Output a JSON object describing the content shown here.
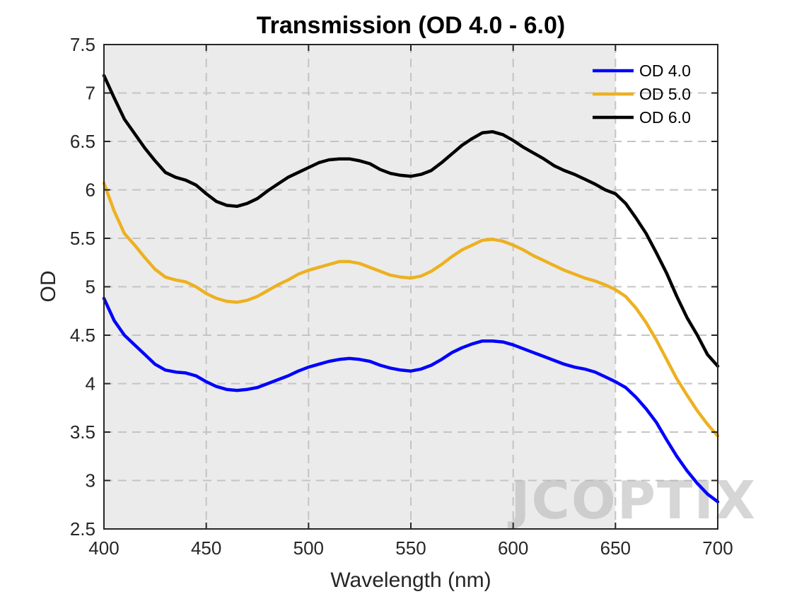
{
  "chart_data": {
    "type": "line",
    "title": "Transmission (OD 4.0 - 6.0)",
    "xlabel": "Wavelength (nm)",
    "ylabel": "OD",
    "xlim": [
      400,
      700
    ],
    "ylim": [
      2.5,
      7.5
    ],
    "x_ticks": [
      "400",
      "450",
      "500",
      "550",
      "600",
      "650",
      "700"
    ],
    "y_ticks": [
      "2.5",
      "3",
      "3.5",
      "4",
      "4.5",
      "5",
      "5.5",
      "6",
      "6.5",
      "7",
      "7.5"
    ],
    "grid": true,
    "legend_position": "top-right",
    "shaded_region": {
      "x": [
        400,
        650
      ],
      "color": "#ebebeb"
    },
    "watermark": "JCOPTIX",
    "series": [
      {
        "name": "OD 4.0",
        "color": "#0000ff",
        "points": [
          [
            400,
            4.88
          ],
          [
            405,
            4.65
          ],
          [
            410,
            4.5
          ],
          [
            415,
            4.4
          ],
          [
            420,
            4.3
          ],
          [
            425,
            4.2
          ],
          [
            430,
            4.14
          ],
          [
            435,
            4.12
          ],
          [
            440,
            4.11
          ],
          [
            445,
            4.08
          ],
          [
            450,
            4.02
          ],
          [
            455,
            3.97
          ],
          [
            460,
            3.94
          ],
          [
            465,
            3.93
          ],
          [
            470,
            3.94
          ],
          [
            475,
            3.96
          ],
          [
            480,
            4.0
          ],
          [
            485,
            4.04
          ],
          [
            490,
            4.08
          ],
          [
            495,
            4.13
          ],
          [
            500,
            4.17
          ],
          [
            505,
            4.2
          ],
          [
            510,
            4.23
          ],
          [
            515,
            4.25
          ],
          [
            520,
            4.26
          ],
          [
            525,
            4.25
          ],
          [
            530,
            4.23
          ],
          [
            535,
            4.19
          ],
          [
            540,
            4.16
          ],
          [
            545,
            4.14
          ],
          [
            550,
            4.13
          ],
          [
            555,
            4.15
          ],
          [
            560,
            4.19
          ],
          [
            565,
            4.25
          ],
          [
            570,
            4.32
          ],
          [
            575,
            4.37
          ],
          [
            580,
            4.41
          ],
          [
            585,
            4.44
          ],
          [
            590,
            4.44
          ],
          [
            595,
            4.43
          ],
          [
            600,
            4.4
          ],
          [
            605,
            4.36
          ],
          [
            610,
            4.32
          ],
          [
            615,
            4.28
          ],
          [
            620,
            4.24
          ],
          [
            625,
            4.2
          ],
          [
            630,
            4.17
          ],
          [
            635,
            4.15
          ],
          [
            640,
            4.12
          ],
          [
            645,
            4.07
          ],
          [
            650,
            4.02
          ],
          [
            655,
            3.96
          ],
          [
            660,
            3.86
          ],
          [
            665,
            3.74
          ],
          [
            670,
            3.6
          ],
          [
            675,
            3.42
          ],
          [
            680,
            3.25
          ],
          [
            685,
            3.1
          ],
          [
            690,
            2.97
          ],
          [
            695,
            2.86
          ],
          [
            700,
            2.78
          ]
        ]
      },
      {
        "name": "OD 5.0",
        "color": "#edb120",
        "points": [
          [
            400,
            6.07
          ],
          [
            405,
            5.78
          ],
          [
            410,
            5.55
          ],
          [
            415,
            5.43
          ],
          [
            420,
            5.3
          ],
          [
            425,
            5.18
          ],
          [
            430,
            5.1
          ],
          [
            435,
            5.07
          ],
          [
            440,
            5.05
          ],
          [
            445,
            5.0
          ],
          [
            450,
            4.93
          ],
          [
            455,
            4.88
          ],
          [
            460,
            4.85
          ],
          [
            465,
            4.84
          ],
          [
            470,
            4.86
          ],
          [
            475,
            4.9
          ],
          [
            480,
            4.96
          ],
          [
            485,
            5.02
          ],
          [
            490,
            5.07
          ],
          [
            495,
            5.13
          ],
          [
            500,
            5.17
          ],
          [
            505,
            5.2
          ],
          [
            510,
            5.23
          ],
          [
            515,
            5.26
          ],
          [
            520,
            5.26
          ],
          [
            525,
            5.24
          ],
          [
            530,
            5.2
          ],
          [
            535,
            5.16
          ],
          [
            540,
            5.12
          ],
          [
            545,
            5.1
          ],
          [
            550,
            5.09
          ],
          [
            555,
            5.11
          ],
          [
            560,
            5.16
          ],
          [
            565,
            5.23
          ],
          [
            570,
            5.31
          ],
          [
            575,
            5.38
          ],
          [
            580,
            5.43
          ],
          [
            585,
            5.48
          ],
          [
            590,
            5.49
          ],
          [
            595,
            5.47
          ],
          [
            600,
            5.43
          ],
          [
            605,
            5.38
          ],
          [
            610,
            5.32
          ],
          [
            615,
            5.27
          ],
          [
            620,
            5.22
          ],
          [
            625,
            5.17
          ],
          [
            630,
            5.13
          ],
          [
            635,
            5.09
          ],
          [
            640,
            5.06
          ],
          [
            645,
            5.02
          ],
          [
            650,
            4.97
          ],
          [
            655,
            4.9
          ],
          [
            660,
            4.78
          ],
          [
            665,
            4.63
          ],
          [
            670,
            4.45
          ],
          [
            675,
            4.25
          ],
          [
            680,
            4.05
          ],
          [
            685,
            3.88
          ],
          [
            690,
            3.72
          ],
          [
            695,
            3.58
          ],
          [
            700,
            3.46
          ]
        ]
      },
      {
        "name": "OD 6.0",
        "color": "#000000",
        "points": [
          [
            400,
            7.18
          ],
          [
            405,
            6.95
          ],
          [
            410,
            6.73
          ],
          [
            415,
            6.58
          ],
          [
            420,
            6.43
          ],
          [
            425,
            6.3
          ],
          [
            430,
            6.18
          ],
          [
            435,
            6.13
          ],
          [
            440,
            6.1
          ],
          [
            445,
            6.05
          ],
          [
            450,
            5.96
          ],
          [
            455,
            5.88
          ],
          [
            460,
            5.84
          ],
          [
            465,
            5.83
          ],
          [
            470,
            5.86
          ],
          [
            475,
            5.91
          ],
          [
            480,
            5.99
          ],
          [
            485,
            6.06
          ],
          [
            490,
            6.13
          ],
          [
            495,
            6.18
          ],
          [
            500,
            6.23
          ],
          [
            505,
            6.28
          ],
          [
            510,
            6.31
          ],
          [
            515,
            6.32
          ],
          [
            520,
            6.32
          ],
          [
            525,
            6.3
          ],
          [
            530,
            6.27
          ],
          [
            535,
            6.21
          ],
          [
            540,
            6.17
          ],
          [
            545,
            6.15
          ],
          [
            550,
            6.14
          ],
          [
            555,
            6.16
          ],
          [
            560,
            6.2
          ],
          [
            565,
            6.28
          ],
          [
            570,
            6.37
          ],
          [
            575,
            6.46
          ],
          [
            580,
            6.53
          ],
          [
            585,
            6.59
          ],
          [
            590,
            6.6
          ],
          [
            595,
            6.57
          ],
          [
            600,
            6.51
          ],
          [
            605,
            6.44
          ],
          [
            610,
            6.38
          ],
          [
            615,
            6.32
          ],
          [
            620,
            6.25
          ],
          [
            625,
            6.2
          ],
          [
            630,
            6.16
          ],
          [
            635,
            6.11
          ],
          [
            640,
            6.06
          ],
          [
            645,
            6.0
          ],
          [
            650,
            5.96
          ],
          [
            655,
            5.86
          ],
          [
            660,
            5.71
          ],
          [
            665,
            5.55
          ],
          [
            670,
            5.35
          ],
          [
            675,
            5.14
          ],
          [
            680,
            4.9
          ],
          [
            685,
            4.68
          ],
          [
            690,
            4.5
          ],
          [
            695,
            4.3
          ],
          [
            700,
            4.18
          ]
        ]
      }
    ]
  }
}
